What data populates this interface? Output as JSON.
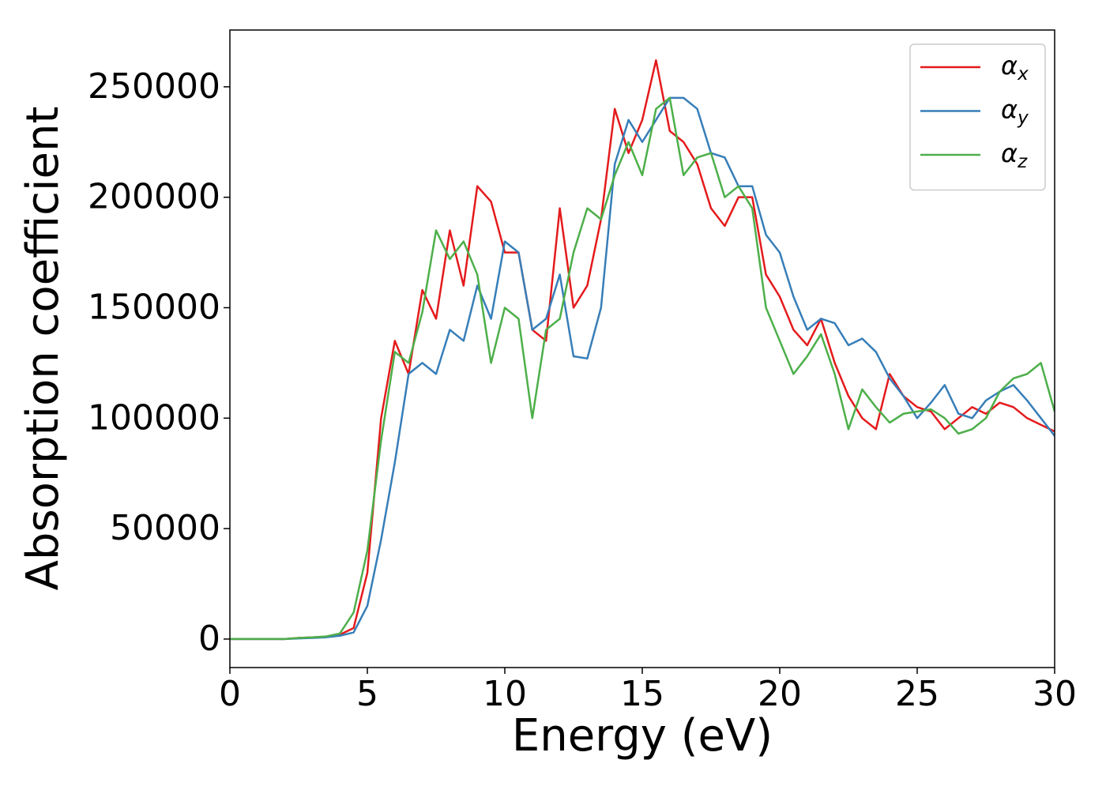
{
  "chart_data": {
    "type": "line",
    "xlabel": "Energy (eV)",
    "ylabel": "Absorption coefficient",
    "x": [
      0,
      0.5,
      1,
      1.5,
      2,
      2.5,
      3,
      3.5,
      4,
      4.5,
      5,
      5.5,
      6,
      6.5,
      7,
      7.5,
      8,
      8.5,
      9,
      9.5,
      10,
      10.5,
      11,
      11.5,
      12,
      12.5,
      13,
      13.5,
      14,
      14.5,
      15,
      15.5,
      16,
      16.5,
      17,
      17.5,
      18,
      18.5,
      19,
      19.5,
      20,
      20.5,
      21,
      21.5,
      22,
      22.5,
      23,
      23.5,
      24,
      24.5,
      25,
      25.5,
      26,
      26.5,
      27,
      27.5,
      28,
      28.5,
      29,
      29.5,
      30
    ],
    "series": [
      {
        "name": "αx",
        "color": "#e41a1c",
        "values": [
          0,
          0,
          0,
          0,
          0,
          500,
          800,
          1000,
          2000,
          5000,
          30000,
          100000,
          135000,
          120000,
          158000,
          145000,
          185000,
          160000,
          205000,
          198000,
          175000,
          175000,
          140000,
          135000,
          195000,
          150000,
          160000,
          190000,
          240000,
          220000,
          235000,
          262000,
          230000,
          225000,
          215000,
          195000,
          187000,
          200000,
          200000,
          165000,
          155000,
          140000,
          133000,
          145000,
          125000,
          110000,
          100000,
          95000,
          120000,
          110000,
          105000,
          103000,
          95000,
          100000,
          105000,
          102000,
          107000,
          105000,
          100000,
          97000,
          94000
        ]
      },
      {
        "name": "αy",
        "color": "#377eb8",
        "values": [
          0,
          0,
          0,
          0,
          0,
          300,
          500,
          800,
          1500,
          3000,
          15000,
          45000,
          80000,
          120000,
          125000,
          120000,
          140000,
          135000,
          160000,
          145000,
          180000,
          175000,
          140000,
          145000,
          165000,
          128000,
          127000,
          150000,
          215000,
          235000,
          225000,
          235000,
          245000,
          245000,
          240000,
          220000,
          218000,
          205000,
          205000,
          183000,
          175000,
          155000,
          140000,
          145000,
          143000,
          133000,
          136000,
          130000,
          118000,
          110000,
          100000,
          107000,
          115000,
          102000,
          100000,
          108000,
          112000,
          115000,
          108000,
          100000,
          92000
        ]
      },
      {
        "name": "αz",
        "color": "#4daf4a",
        "values": [
          0,
          0,
          0,
          0,
          0,
          500,
          800,
          1200,
          2500,
          12000,
          40000,
          90000,
          130000,
          125000,
          148000,
          185000,
          172000,
          180000,
          165000,
          125000,
          150000,
          145000,
          100000,
          140000,
          145000,
          175000,
          195000,
          190000,
          210000,
          225000,
          210000,
          240000,
          245000,
          210000,
          218000,
          220000,
          200000,
          205000,
          195000,
          150000,
          135000,
          120000,
          128000,
          138000,
          120000,
          95000,
          113000,
          105000,
          98000,
          102000,
          103000,
          104000,
          100000,
          93000,
          95000,
          100000,
          112000,
          118000,
          120000,
          125000,
          103000
        ]
      }
    ],
    "xlim": [
      0,
      30
    ],
    "xticks": [
      0,
      5,
      10,
      15,
      20,
      25,
      30
    ],
    "ylim": [
      -12900,
      275700
    ],
    "yticks": [
      0,
      50000,
      100000,
      150000,
      200000,
      250000
    ],
    "legend": "upper right",
    "grid": false
  }
}
